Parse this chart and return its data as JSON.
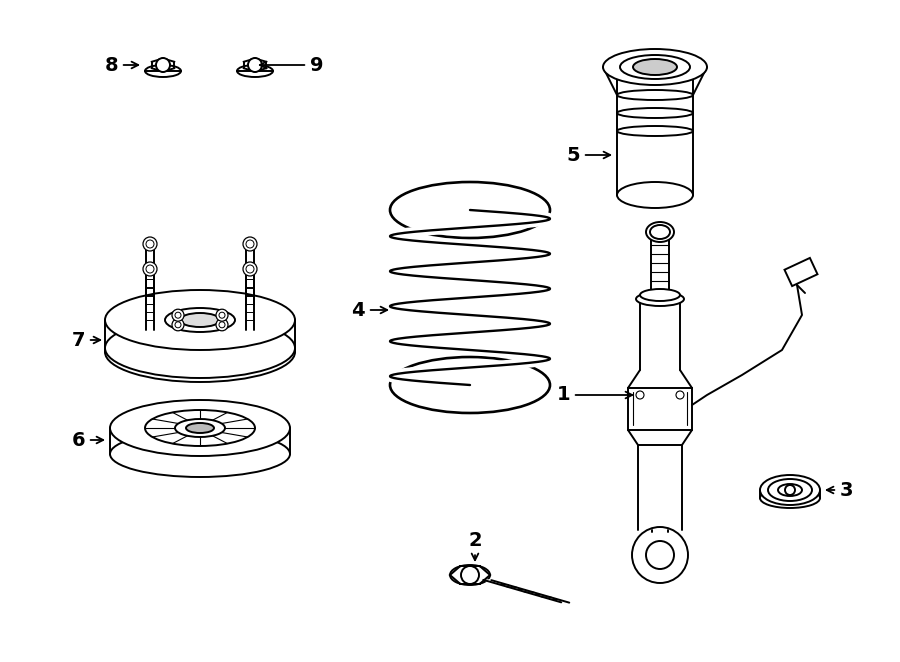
{
  "bg_color": "#ffffff",
  "line_color": "#000000",
  "lw": 1.4,
  "fig_w": 9.0,
  "fig_h": 6.62,
  "dpi": 100
}
